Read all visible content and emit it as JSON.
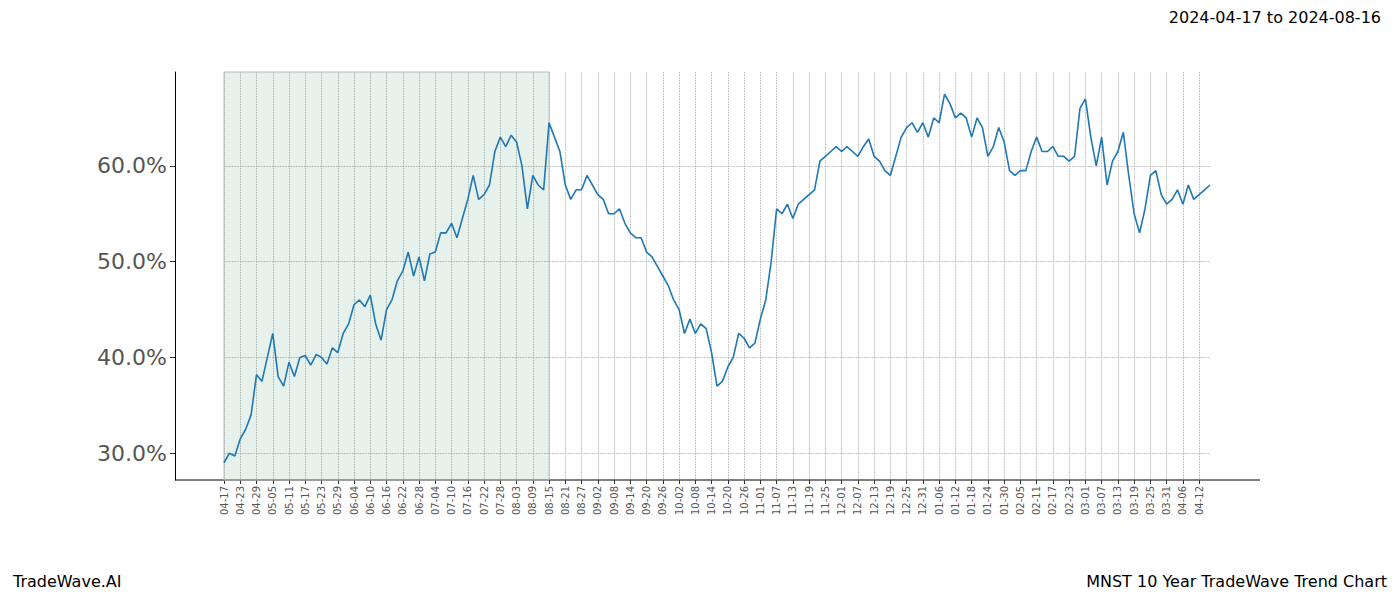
{
  "chart_data": {
    "type": "line",
    "title": "MNST 10 Year TradeWave Trend Chart",
    "subtitle": "2024-04-17 to 2024-08-16",
    "annotations": [
      "TradeWave.AI"
    ],
    "color": "#1f77b4",
    "grid": true,
    "shaded_range": {
      "from": "04-17",
      "to": "08-15"
    },
    "ylim": [
      27.2,
      69.8
    ],
    "yticks": [
      {
        "value": 30,
        "label": "30.0%"
      },
      {
        "value": 40,
        "label": "40.0%"
      },
      {
        "value": 50,
        "label": "50.0%"
      },
      {
        "value": 60,
        "label": "60.0%"
      }
    ],
    "categories": [
      "04-17",
      null,
      null,
      "04-23",
      null,
      null,
      "04-29",
      null,
      null,
      "05-05",
      null,
      null,
      "05-11",
      null,
      null,
      "05-17",
      null,
      null,
      "05-23",
      null,
      null,
      "05-29",
      null,
      null,
      "06-04",
      null,
      null,
      "06-10",
      null,
      null,
      "06-16",
      null,
      null,
      "06-22",
      null,
      null,
      "06-28",
      null,
      null,
      "07-04",
      null,
      null,
      "07-10",
      null,
      null,
      "07-16",
      null,
      null,
      "07-22",
      null,
      null,
      "07-28",
      null,
      null,
      "08-03",
      null,
      null,
      "08-09",
      null,
      null,
      "08-15",
      null,
      null,
      "08-21",
      null,
      null,
      "08-27",
      null,
      null,
      "09-02",
      null,
      null,
      "09-08",
      null,
      null,
      "09-14",
      null,
      null,
      "09-20",
      null,
      null,
      "09-26",
      null,
      null,
      "10-02",
      null,
      null,
      "10-08",
      null,
      null,
      "10-14",
      null,
      null,
      "10-20",
      null,
      null,
      "10-26",
      null,
      null,
      "11-01",
      null,
      null,
      "11-07",
      null,
      null,
      "11-13",
      null,
      null,
      "11-19",
      null,
      null,
      "11-25",
      null,
      null,
      "12-01",
      null,
      null,
      "12-07",
      null,
      null,
      "12-13",
      null,
      null,
      "12-19",
      null,
      null,
      "12-25",
      null,
      null,
      "12-31",
      null,
      null,
      "01-06",
      null,
      null,
      "01-12",
      null,
      null,
      "01-18",
      null,
      null,
      "01-24",
      null,
      null,
      "01-30",
      null,
      null,
      "02-05",
      null,
      null,
      "02-11",
      null,
      null,
      "02-17",
      null,
      null,
      "02-23",
      null,
      null,
      "03-01",
      null,
      null,
      "03-07",
      null,
      null,
      "03-13",
      null,
      null,
      "03-19",
      null,
      null,
      "03-25",
      null,
      null,
      "03-31",
      null,
      null,
      "04-06",
      null,
      null,
      "04-12",
      null,
      null
    ],
    "values": [
      29.0,
      30.0,
      29.7,
      31.5,
      32.5,
      34.0,
      38.2,
      37.5,
      40.0,
      42.5,
      38.0,
      37.0,
      39.5,
      38.0,
      40.0,
      40.2,
      39.2,
      40.3,
      40.0,
      39.3,
      41.0,
      40.5,
      42.5,
      43.5,
      45.5,
      46.0,
      45.3,
      46.5,
      43.5,
      41.8,
      45.0,
      46.0,
      48.0,
      49.0,
      51.0,
      48.5,
      50.5,
      48.0,
      50.8,
      51.0,
      53.0,
      53.0,
      54.0,
      52.5,
      54.5,
      56.5,
      59.0,
      56.5,
      57.0,
      58.0,
      61.5,
      63.0,
      62.0,
      63.2,
      62.5,
      60.0,
      55.5,
      59.0,
      58.0,
      57.5,
      64.5,
      63.0,
      61.5,
      58.0,
      56.5,
      57.5,
      57.5,
      59.0,
      58.0,
      57.0,
      56.5,
      55.0,
      55.0,
      55.5,
      54.0,
      53.0,
      52.5,
      52.5,
      51.0,
      50.5,
      49.5,
      48.5,
      47.5,
      46.0,
      45.0,
      42.5,
      44.0,
      42.5,
      43.5,
      43.0,
      40.5,
      37.0,
      37.5,
      39.0,
      40.0,
      42.5,
      42.0,
      41.0,
      41.5,
      44.0,
      46.0,
      50.0,
      55.5,
      55.0,
      56.0,
      54.5,
      56.0,
      56.5,
      57.0,
      57.5,
      60.5,
      61.0,
      61.5,
      62.0,
      61.5,
      62.0,
      61.5,
      61.0,
      62.0,
      62.8,
      61.0,
      60.5,
      59.5,
      59.0,
      61.0,
      63.0,
      64.0,
      64.5,
      63.5,
      64.5,
      63.0,
      65.0,
      64.5,
      67.5,
      66.5,
      65.0,
      65.5,
      65.0,
      63.0,
      65.0,
      64.0,
      61.0,
      62.0,
      64.0,
      62.5,
      59.5,
      59.0,
      59.5,
      59.5,
      61.5,
      63.0,
      61.5,
      61.5,
      62.0,
      61.0,
      61.0,
      60.5,
      61.0,
      66.0,
      67.0,
      63.0,
      60.0,
      63.0,
      58.0,
      60.5,
      61.5,
      63.5,
      59.0,
      55.0,
      53.0,
      55.5,
      59.0,
      59.5,
      57.0,
      56.0,
      56.5,
      57.5,
      56.0,
      58.0,
      56.5,
      57.0,
      57.5,
      58.0
    ]
  }
}
